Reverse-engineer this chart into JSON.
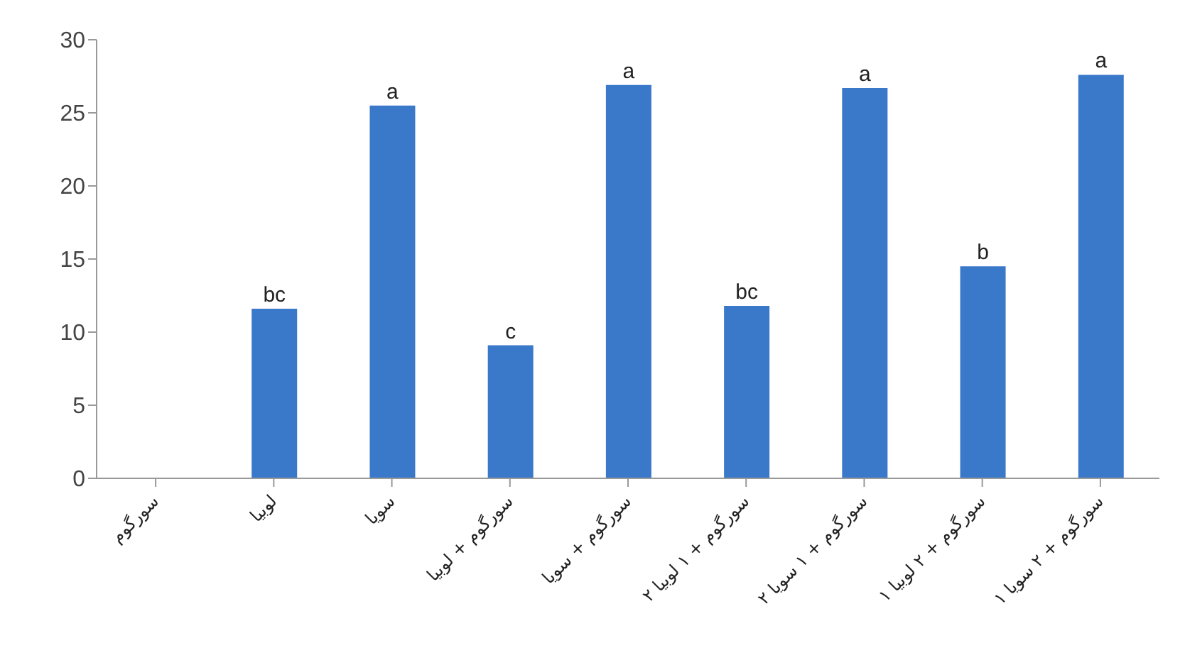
{
  "chart_data": {
    "type": "bar",
    "categories": [
      "سورگوم",
      "لوبیا",
      "سویا",
      "سورگوم + لوبیا",
      "سورگوم + سویا",
      "۲ سورگوم + ۱ لوبیا",
      "۲ سورگوم + ۱ سویا",
      "۱ سورگوم + ۲ لوبیا",
      "۱ سورگوم + ۲ سویا"
    ],
    "values": [
      0,
      11.6,
      25.5,
      9.1,
      26.9,
      11.8,
      26.7,
      14.5,
      27.6
    ],
    "value_labels": [
      null,
      "bc",
      "a",
      "c",
      "a",
      "bc",
      "a",
      "b",
      "a"
    ],
    "color": "#3a78c9",
    "ylim": [
      0,
      30
    ],
    "yticks": [
      0,
      5,
      10,
      15,
      20,
      25,
      30
    ]
  }
}
